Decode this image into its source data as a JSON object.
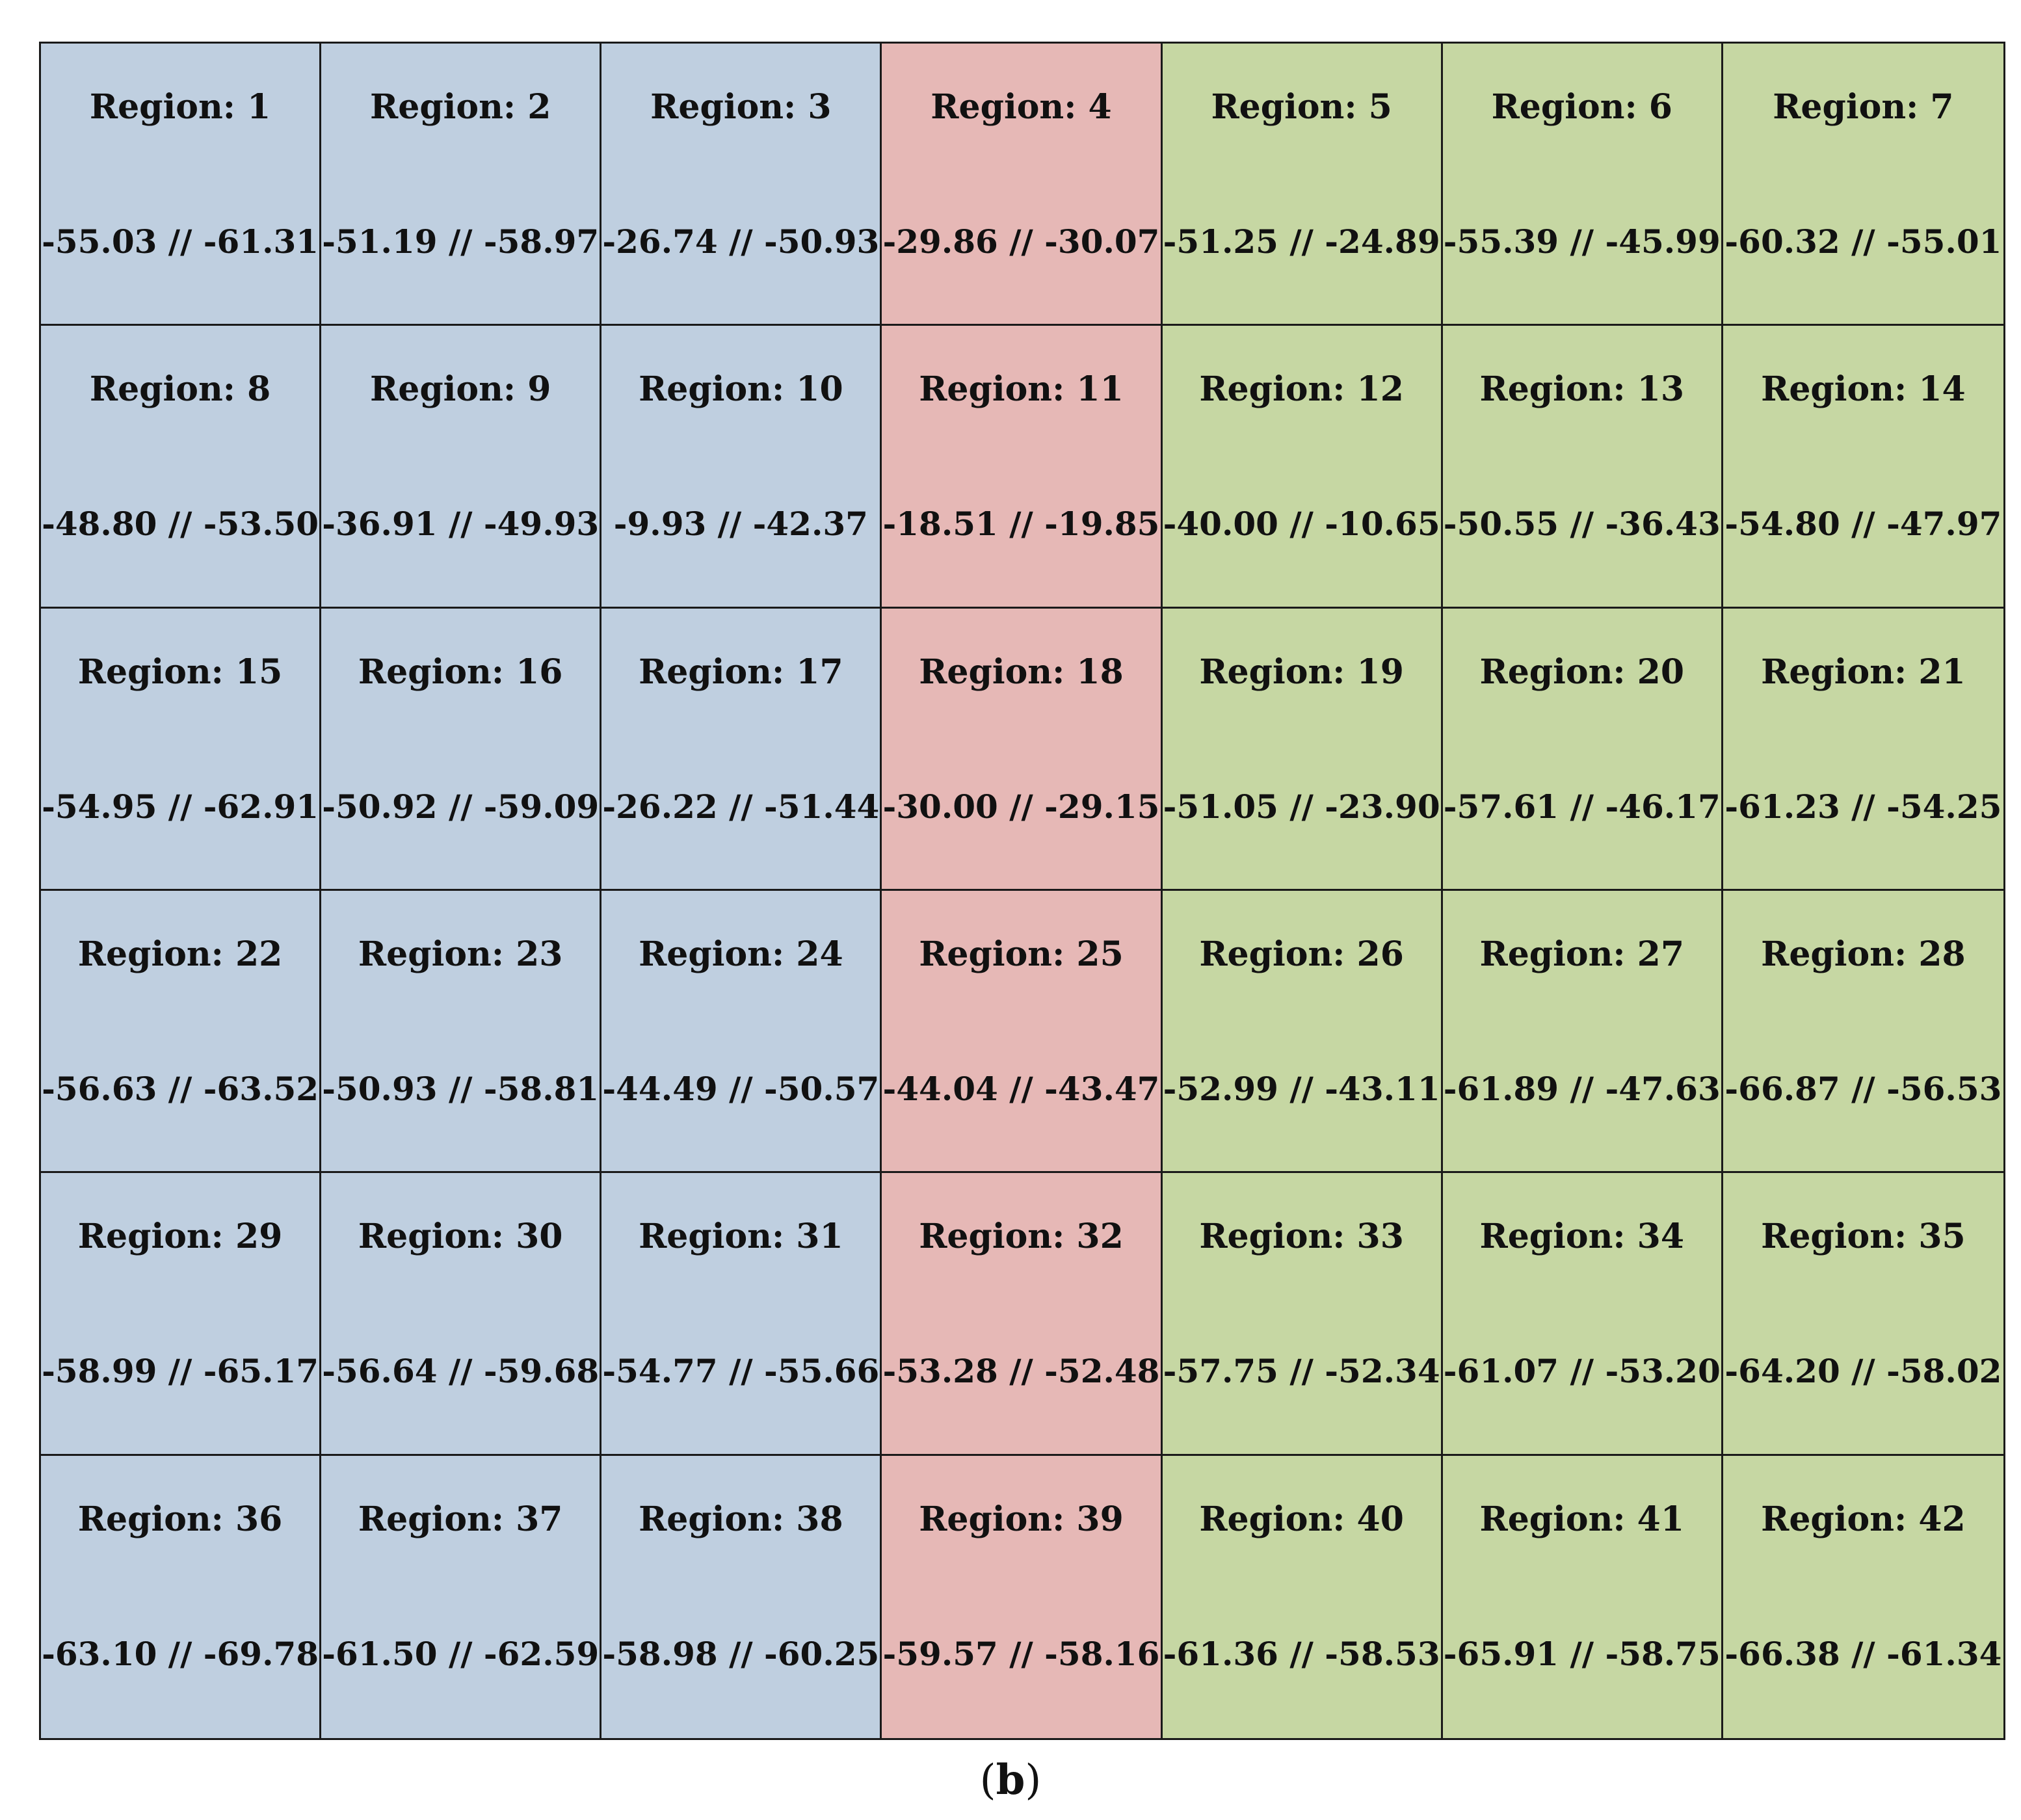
{
  "caption": {
    "open": "(",
    "letter": "b",
    "close": ")"
  },
  "colors": {
    "blue": "#bfcfe0",
    "red": "#e6b8b6",
    "green": "#c6d7a3"
  },
  "column_groups": [
    "blue",
    "blue",
    "blue",
    "red",
    "green",
    "green",
    "green"
  ],
  "regions": [
    {
      "label": "Region: 1",
      "values": "-55.03 // -61.31"
    },
    {
      "label": "Region: 2",
      "values": "-51.19 // -58.97"
    },
    {
      "label": "Region: 3",
      "values": "-26.74 // -50.93"
    },
    {
      "label": "Region: 4",
      "values": "-29.86 // -30.07"
    },
    {
      "label": "Region: 5",
      "values": "-51.25 // -24.89"
    },
    {
      "label": "Region: 6",
      "values": "-55.39 // -45.99"
    },
    {
      "label": "Region: 7",
      "values": "-60.32 // -55.01"
    },
    {
      "label": "Region: 8",
      "values": "-48.80 // -53.50"
    },
    {
      "label": "Region: 9",
      "values": "-36.91 // -49.93"
    },
    {
      "label": "Region: 10",
      "values": "-9.93 // -42.37"
    },
    {
      "label": "Region: 11",
      "values": "-18.51 // -19.85"
    },
    {
      "label": "Region: 12",
      "values": "-40.00 // -10.65"
    },
    {
      "label": "Region: 13",
      "values": "-50.55 // -36.43"
    },
    {
      "label": "Region: 14",
      "values": "-54.80 // -47.97"
    },
    {
      "label": "Region: 15",
      "values": "-54.95 // -62.91"
    },
    {
      "label": "Region: 16",
      "values": "-50.92 // -59.09"
    },
    {
      "label": "Region: 17",
      "values": "-26.22 // -51.44"
    },
    {
      "label": "Region: 18",
      "values": "-30.00 // -29.15"
    },
    {
      "label": "Region: 19",
      "values": "-51.05 // -23.90"
    },
    {
      "label": "Region: 20",
      "values": "-57.61 // -46.17"
    },
    {
      "label": "Region: 21",
      "values": "-61.23 // -54.25"
    },
    {
      "label": "Region: 22",
      "values": "-56.63 // -63.52"
    },
    {
      "label": "Region: 23",
      "values": "-50.93 // -58.81"
    },
    {
      "label": "Region: 24",
      "values": "-44.49 // -50.57"
    },
    {
      "label": "Region: 25",
      "values": "-44.04 // -43.47"
    },
    {
      "label": "Region: 26",
      "values": "-52.99 // -43.11"
    },
    {
      "label": "Region: 27",
      "values": "-61.89 // -47.63"
    },
    {
      "label": "Region: 28",
      "values": "-66.87 // -56.53"
    },
    {
      "label": "Region: 29",
      "values": "-58.99 // -65.17"
    },
    {
      "label": "Region: 30",
      "values": "-56.64 // -59.68"
    },
    {
      "label": "Region: 31",
      "values": "-54.77 // -55.66"
    },
    {
      "label": "Region: 32",
      "values": "-53.28 // -52.48"
    },
    {
      "label": "Region: 33",
      "values": "-57.75 // -52.34"
    },
    {
      "label": "Region: 34",
      "values": "-61.07 // -53.20"
    },
    {
      "label": "Region: 35",
      "values": "-64.20 // -58.02"
    },
    {
      "label": "Region: 36",
      "values": "-63.10 // -69.78"
    },
    {
      "label": "Region: 37",
      "values": "-61.50 // -62.59"
    },
    {
      "label": "Region: 38",
      "values": "-58.98 // -60.25"
    },
    {
      "label": "Region: 39",
      "values": "-59.57 // -58.16"
    },
    {
      "label": "Region: 40",
      "values": "-61.36 // -58.53"
    },
    {
      "label": "Region: 41",
      "values": "-65.91 // -58.75"
    },
    {
      "label": "Region: 42",
      "values": "-66.38 // -61.34"
    }
  ]
}
